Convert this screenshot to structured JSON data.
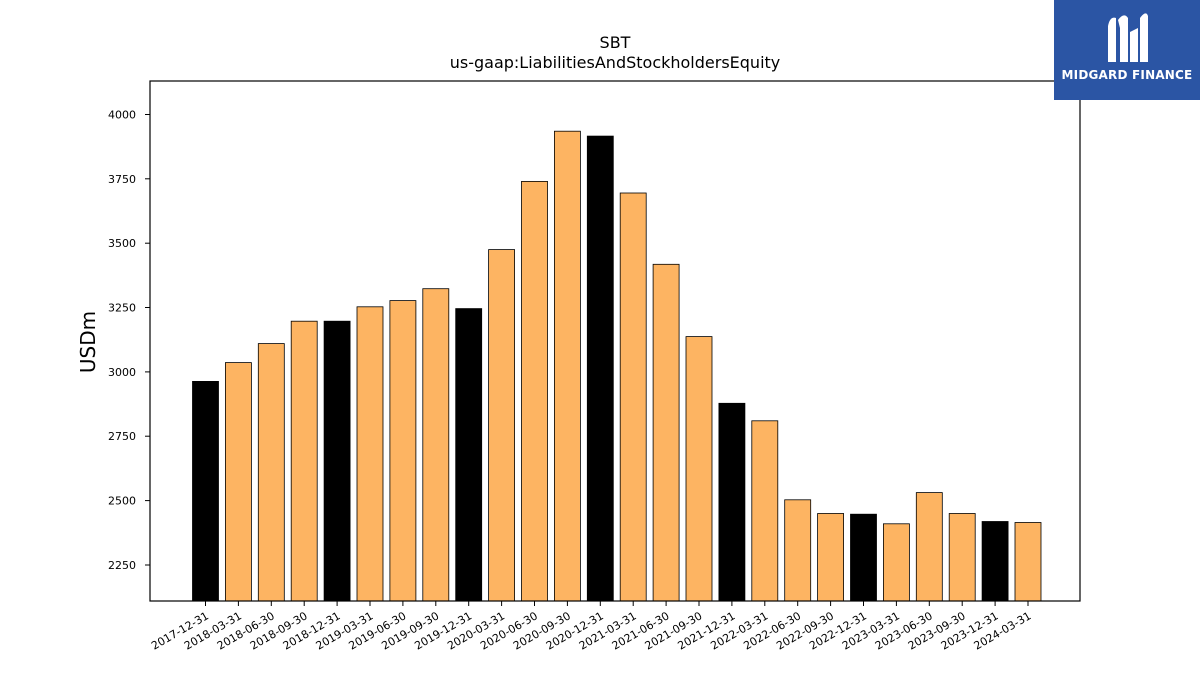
{
  "chart_data": {
    "type": "bar",
    "title": "SBT",
    "subtitle": "us-gaap:LiabilitiesAndStockholdersEquity",
    "ylabel": "USDm",
    "xlabel": "",
    "ylim": [
      2110,
      4130
    ],
    "yticks": [
      2250,
      2500,
      2750,
      3000,
      3250,
      3500,
      3750,
      4000
    ],
    "grid": false,
    "categories": [
      "2017-12-31",
      "2018-03-31",
      "2018-06-30",
      "2018-09-30",
      "2018-12-31",
      "2019-03-31",
      "2019-06-30",
      "2019-09-30",
      "2019-12-31",
      "2020-03-31",
      "2020-06-30",
      "2020-09-30",
      "2020-12-31",
      "2021-03-31",
      "2021-06-30",
      "2021-09-30",
      "2021-12-31",
      "2022-03-31",
      "2022-06-30",
      "2022-09-30",
      "2022-12-31",
      "2023-03-31",
      "2023-06-30",
      "2023-09-30",
      "2023-12-31",
      "2024-03-31"
    ],
    "values": [
      2963,
      3036,
      3110,
      3197,
      3197,
      3253,
      3277,
      3323,
      3246,
      3475,
      3740,
      3935,
      3916,
      3695,
      3418,
      3137,
      2878,
      2810,
      2503,
      2450,
      2447,
      2410,
      2531,
      2450,
      2419,
      2415
    ],
    "highlight": [
      true,
      false,
      false,
      false,
      true,
      false,
      false,
      false,
      true,
      false,
      false,
      false,
      true,
      false,
      false,
      false,
      true,
      false,
      false,
      false,
      true,
      false,
      false,
      false,
      true,
      false
    ],
    "colors": {
      "bar": "#fdb462",
      "highlight": "#000000",
      "edge": "#000000"
    }
  },
  "logo": {
    "text": "MIDGARD FINANCE",
    "background": "#2b55a4"
  }
}
